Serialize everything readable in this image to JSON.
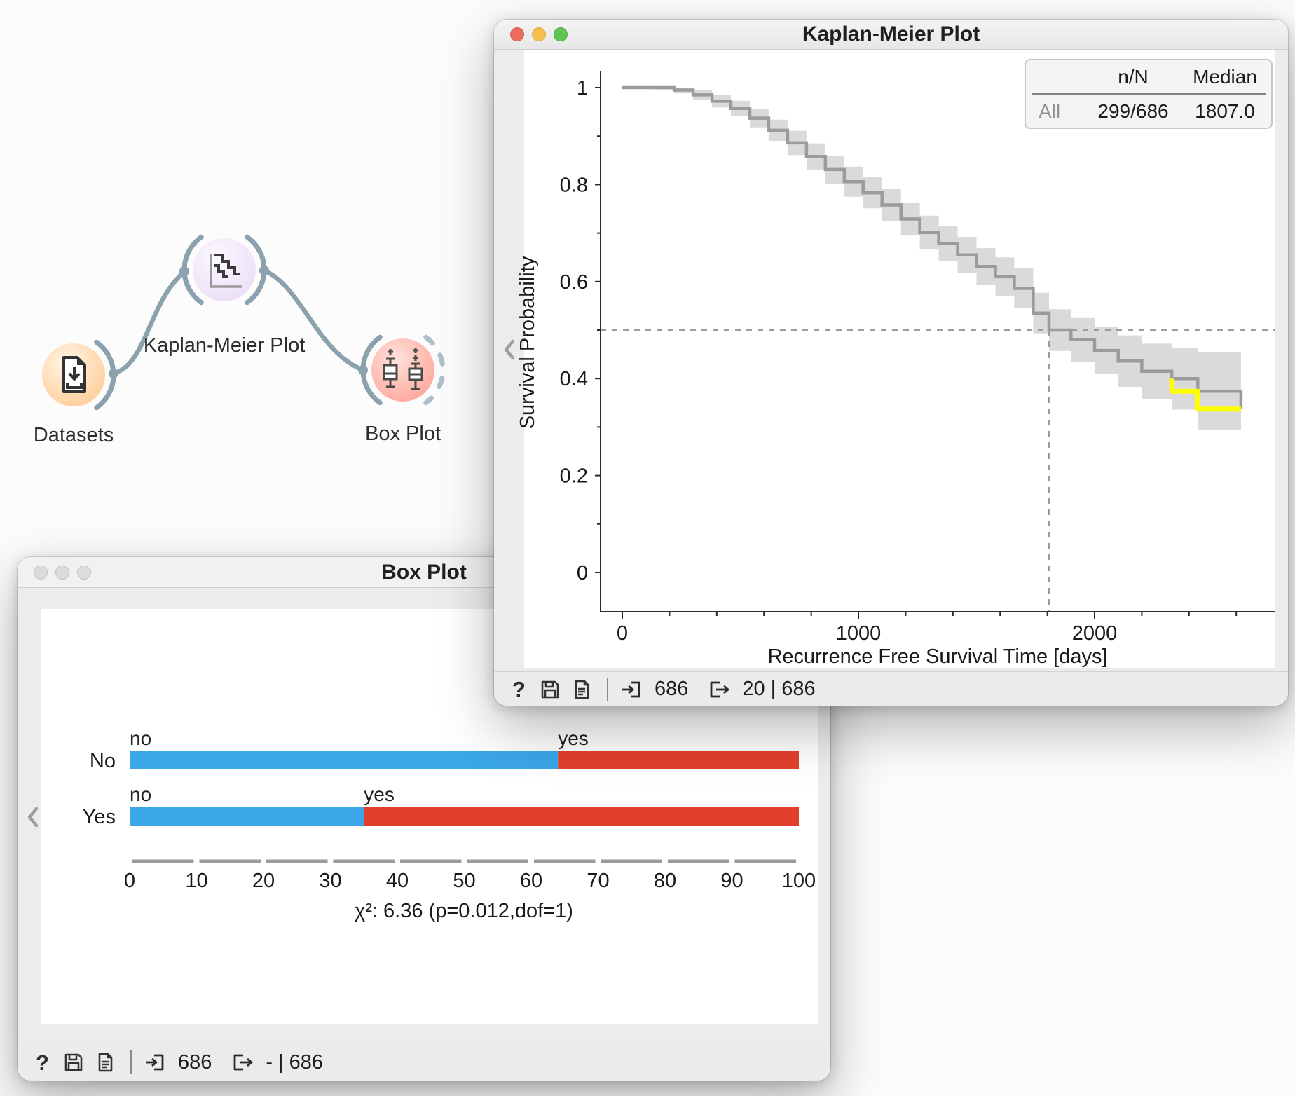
{
  "canvas": {
    "link_color": "#8CA1AE",
    "widgets": [
      {
        "name": "Datasets",
        "color_inner": "#FFF6E8",
        "color_outer": "#FFCB92"
      },
      {
        "name": "Kaplan-Meier Plot",
        "color_inner": "#FCF9FF",
        "color_outer": "#E9DDF6"
      },
      {
        "name": "Box Plot",
        "color_inner": "#FFDFDA",
        "color_outer": "#FFA396"
      }
    ]
  },
  "km_window": {
    "title": "Kaplan-Meier Plot",
    "legend": {
      "col1": "n/N",
      "col2": "Median",
      "row_label": "All",
      "row_nN": "299/686",
      "row_median": "1807.0"
    },
    "status": {
      "help": "?",
      "input": "686",
      "output": "20 | 686"
    }
  },
  "box_window": {
    "title": "Box Plot",
    "status": {
      "help": "?",
      "input": "686",
      "output": "- | 686"
    }
  },
  "chart_data": [
    {
      "type": "line",
      "subtype": "kaplan-meier-step",
      "title": "Kaplan-Meier Plot",
      "xlabel": "Recurrence Free Survival Time [days]",
      "ylabel": "Survival Probability",
      "xlim": [
        0,
        2750
      ],
      "ylim": [
        0,
        1
      ],
      "xticks": [
        0,
        1000,
        2000
      ],
      "yticks": [
        0,
        0.2,
        0.4,
        0.6,
        0.8,
        1
      ],
      "minor_xtick_step": 200,
      "minor_ytick_step": 0.1,
      "grid": false,
      "curve_color": "#9B9B9B",
      "band_color": "#D4D4D4",
      "highlight_color": "#FFFF00",
      "dash_color": "#9C9C9C",
      "axis_color": "#2b2b2b",
      "legend_position": "top-right",
      "median_crosshair": {
        "time": 1807,
        "survival": 0.5
      },
      "series": [
        {
          "name": "All",
          "n_over_N": "299/686",
          "median": 1807.0,
          "points": [
            [
              0,
              1.0,
              0.0
            ],
            [
              140,
              1.0,
              0.004
            ],
            [
              220,
              0.995,
              0.007
            ],
            [
              300,
              0.985,
              0.01
            ],
            [
              380,
              0.972,
              0.013
            ],
            [
              460,
              0.957,
              0.016
            ],
            [
              540,
              0.937,
              0.019
            ],
            [
              620,
              0.912,
              0.022
            ],
            [
              700,
              0.886,
              0.025
            ],
            [
              780,
              0.858,
              0.027
            ],
            [
              860,
              0.831,
              0.029
            ],
            [
              940,
              0.806,
              0.031
            ],
            [
              1020,
              0.783,
              0.032
            ],
            [
              1100,
              0.758,
              0.033
            ],
            [
              1180,
              0.729,
              0.034
            ],
            [
              1260,
              0.701,
              0.035
            ],
            [
              1340,
              0.678,
              0.036
            ],
            [
              1420,
              0.655,
              0.037
            ],
            [
              1500,
              0.631,
              0.038
            ],
            [
              1580,
              0.61,
              0.04
            ],
            [
              1660,
              0.586,
              0.041
            ],
            [
              1740,
              0.535,
              0.042
            ],
            [
              1807,
              0.5,
              0.043
            ],
            [
              1900,
              0.48,
              0.045
            ],
            [
              2000,
              0.458,
              0.049
            ],
            [
              2100,
              0.436,
              0.053
            ],
            [
              2200,
              0.415,
              0.057
            ],
            [
              2327,
              0.4,
              0.064
            ],
            [
              2437,
              0.374,
              0.08
            ],
            [
              2620,
              0.337,
              0.095
            ]
          ]
        }
      ],
      "highlight_segment": [
        [
          2327,
          0.4
        ],
        [
          2327,
          0.374
        ],
        [
          2437,
          0.374
        ],
        [
          2437,
          0.337
        ],
        [
          2620,
          0.337
        ]
      ]
    },
    {
      "type": "bar",
      "orientation": "horizontal",
      "stacked": true,
      "unit": "%",
      "categories": [
        "No",
        "Yes"
      ],
      "series": [
        {
          "name": "no",
          "color": "#3BA7E8",
          "values": [
            64,
            35
          ]
        },
        {
          "name": "yes",
          "color": "#E2402D",
          "values": [
            36,
            65
          ]
        }
      ],
      "xlim": [
        0,
        100
      ],
      "xticks": [
        0,
        10,
        20,
        30,
        40,
        50,
        60,
        70,
        80,
        90,
        100
      ],
      "axis_color": "#9B9B9B",
      "annotation": "χ²: 6.36 (p=0.012,dof=1)"
    }
  ]
}
